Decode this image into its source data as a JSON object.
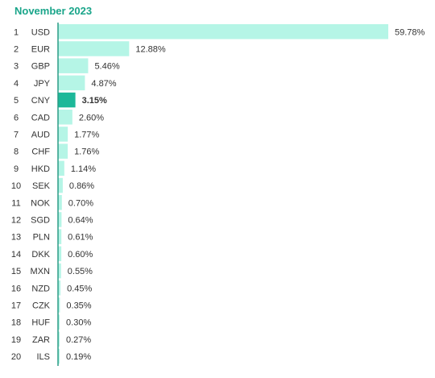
{
  "title": "November 2023",
  "watermark": "",
  "colors": {
    "bar": "#b5f5e6",
    "highlight": "#1db899",
    "axis": "#2b9c86",
    "title": "#1aa58a",
    "text": "#333333"
  },
  "chart_data": {
    "type": "bar",
    "orientation": "horizontal",
    "title": "November 2023",
    "highlight_category": "CNY",
    "xlim": [
      0,
      59.78
    ],
    "ranks": [
      1,
      2,
      3,
      4,
      5,
      6,
      7,
      8,
      9,
      10,
      11,
      12,
      13,
      14,
      15,
      16,
      17,
      18,
      19,
      20
    ],
    "categories": [
      "USD",
      "EUR",
      "GBP",
      "JPY",
      "CNY",
      "CAD",
      "AUD",
      "CHF",
      "HKD",
      "SEK",
      "NOK",
      "SGD",
      "PLN",
      "DKK",
      "MXN",
      "NZD",
      "CZK",
      "HUF",
      "ZAR",
      "ILS"
    ],
    "values": [
      59.78,
      12.88,
      5.46,
      4.87,
      3.15,
      2.6,
      1.77,
      1.76,
      1.14,
      0.86,
      0.7,
      0.64,
      0.61,
      0.6,
      0.55,
      0.45,
      0.35,
      0.3,
      0.27,
      0.19
    ],
    "labels": [
      "59.78%",
      "12.88%",
      "5.46%",
      "4.87%",
      "3.15%",
      "2.60%",
      "1.77%",
      "1.76%",
      "1.14%",
      "0.86%",
      "0.70%",
      "0.64%",
      "0.61%",
      "0.60%",
      "0.55%",
      "0.45%",
      "0.35%",
      "0.30%",
      "0.27%",
      "0.19%"
    ]
  }
}
